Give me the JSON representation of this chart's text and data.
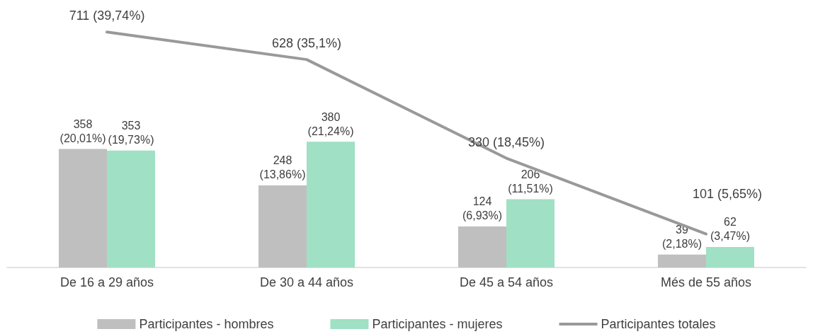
{
  "chart_data": {
    "type": "bar",
    "categories": [
      "De 16 a 29 años",
      "De 30 a 44 años",
      "De 45 a 54 años",
      "Més de 55 años"
    ],
    "series": [
      {
        "name": "Participantes - hombres",
        "color": "#bfbfbf",
        "values": [
          358,
          248,
          124,
          39
        ],
        "value_labels": [
          "358\n(20,01%)",
          "248\n(13,86%)",
          "124\n(6,93%)",
          "39\n(2,18%)"
        ]
      },
      {
        "name": "Participantes - mujeres",
        "color": "#a0e0c5",
        "values": [
          353,
          380,
          206,
          62
        ],
        "value_labels": [
          "353\n(19,73%)",
          "380\n(21,24%)",
          "206\n(11,51%)",
          "62\n(3,47%)"
        ]
      },
      {
        "name": "Participantes totales",
        "type": "line",
        "color": "#999999",
        "values": [
          711,
          628,
          330,
          101
        ],
        "value_labels": [
          "711 (39,74%)",
          "628 (35,1%)",
          "330 (18,45%)",
          "101 (5,65%)"
        ]
      }
    ],
    "legend": "bottom",
    "grid": false,
    "marker": "none",
    "line_style": "solid"
  }
}
